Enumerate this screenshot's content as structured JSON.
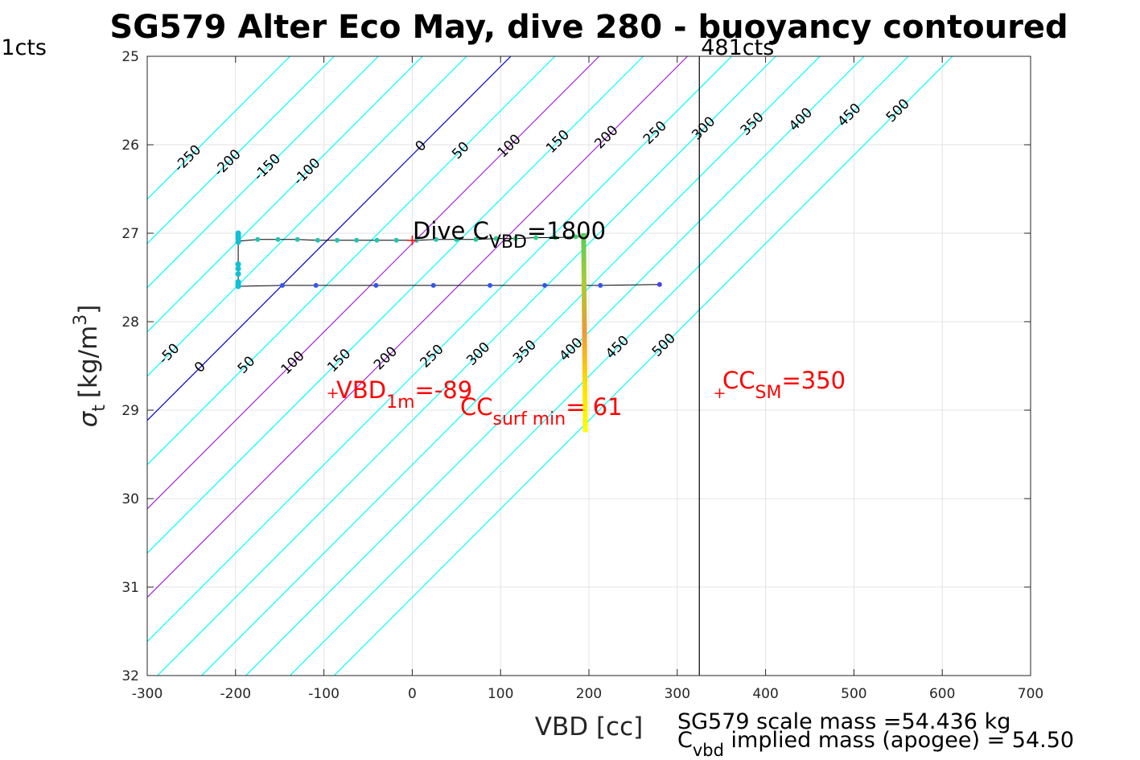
{
  "chart_data": {
    "type": "line",
    "title": "SG579 Alter Eco May, dive 280 - buoyancy contoured",
    "xlabel": "VBD [cc]",
    "ylabel_main": "σ",
    "ylabel_sub": "t",
    "ylabel_unit": "[kg/m",
    "ylabel_sup": "3",
    "ylabel_close": "]",
    "xlim": [
      -300,
      700
    ],
    "ylim": [
      25,
      32
    ],
    "y_reversed": true,
    "grid": true,
    "x_ticks": [
      -300,
      -200,
      -100,
      0,
      100,
      200,
      300,
      400,
      500,
      600,
      700
    ],
    "x_tick_labels": [
      "-300",
      "-200",
      "-100",
      "0",
      "100",
      "200",
      "300",
      "400",
      "500",
      "600",
      "700"
    ],
    "y_ticks": [
      25,
      26,
      27,
      28,
      29,
      30,
      31,
      32
    ],
    "y_tick_labels": [
      "25",
      "26",
      "27",
      "28",
      "29",
      "30",
      "31",
      "32"
    ],
    "contours": {
      "slope_cc_per_sigma": -100,
      "ref_sigma": 27,
      "ref_vbd_at_zero": -88.4,
      "levels": [
        -250,
        -200,
        -150,
        -100,
        -50,
        0,
        50,
        100,
        150,
        200,
        250,
        300,
        350,
        400,
        450,
        500
      ],
      "level_labels": [
        "-250",
        "-200",
        "-150",
        "-100",
        "-50",
        "0",
        "50",
        "100",
        "150",
        "200",
        "250",
        "300",
        "350",
        "400",
        "450",
        "500"
      ],
      "colors": {
        "default": "#00ffff",
        "zero": "#0000cc",
        "highlight": "#aa22dd"
      },
      "highlight_levels": [
        100,
        200
      ],
      "top_label_levels": [
        -250,
        -200,
        -150,
        -100,
        0,
        50,
        100,
        150,
        200,
        250,
        300,
        350,
        400,
        450,
        500
      ],
      "bottom_label_levels": [
        -50,
        0,
        50,
        100,
        150,
        200,
        250,
        300,
        350,
        400,
        450,
        500
      ]
    },
    "vertical_lines": [
      {
        "x": 325,
        "label": "481cts",
        "color": "#000000"
      },
      {
        "x": -300,
        "label": "1cts",
        "color": "#000000"
      }
    ],
    "series": [
      {
        "name": "",
        "color": "#000000",
        "points": [
          {
            "x": -197,
            "y": 27.09,
            "c": "#20c0c0"
          },
          {
            "x": -175,
            "y": 27.07,
            "c": "#22c4b0"
          },
          {
            "x": -152,
            "y": 27.07,
            "c": "#22c4b0"
          },
          {
            "x": -130,
            "y": 27.07,
            "c": "#22c4b0"
          },
          {
            "x": -107,
            "y": 27.08,
            "c": "#22c4b0"
          },
          {
            "x": -85,
            "y": 27.08,
            "c": "#22c4b0"
          },
          {
            "x": -63,
            "y": 27.08,
            "c": "#22c4b0"
          },
          {
            "x": -40,
            "y": 27.08,
            "c": "#22c4b0"
          },
          {
            "x": -18,
            "y": 27.08,
            "c": "#22c4b0"
          },
          {
            "x": 5,
            "y": 27.08,
            "c": "#22c4b0"
          },
          {
            "x": 27,
            "y": 27.07,
            "c": "#22c4b0"
          },
          {
            "x": 50,
            "y": 27.07,
            "c": "#24c8a0"
          },
          {
            "x": 72,
            "y": 27.07,
            "c": "#26cc98"
          },
          {
            "x": 95,
            "y": 27.06,
            "c": "#28cc90"
          },
          {
            "x": 117,
            "y": 27.06,
            "c": "#2ace88"
          },
          {
            "x": 140,
            "y": 27.05,
            "c": "#30d080"
          },
          {
            "x": 162,
            "y": 27.05,
            "c": "#38d078"
          },
          {
            "x": 185,
            "y": 27.04,
            "c": "#40d070"
          },
          {
            "x": 194,
            "y": 27.03,
            "c": "#50d060"
          }
        ]
      },
      {
        "name": "",
        "color": "#000000",
        "points": [
          {
            "x": -197,
            "y": 27.6,
            "c": "#3366ee"
          },
          {
            "x": -147,
            "y": 27.59,
            "c": "#3355ee"
          },
          {
            "x": -109,
            "y": 27.59,
            "c": "#3355ee"
          },
          {
            "x": -41,
            "y": 27.59,
            "c": "#3355ee"
          },
          {
            "x": 24,
            "y": 27.59,
            "c": "#3355ee"
          },
          {
            "x": 88,
            "y": 27.59,
            "c": "#3355ee"
          },
          {
            "x": 150,
            "y": 27.59,
            "c": "#3355ee"
          },
          {
            "x": 213,
            "y": 27.59,
            "c": "#3355ee"
          },
          {
            "x": 280,
            "y": 27.58,
            "c": "#4444ee"
          }
        ]
      }
    ],
    "vertical_cluster": {
      "x": -197,
      "y_values": [
        27.0,
        27.03,
        27.06,
        27.1,
        27.35,
        27.4,
        27.46,
        27.55,
        27.58,
        27.6
      ],
      "color": "#10c0d8"
    },
    "thick_segment": {
      "x_start": 194,
      "x_end": 196,
      "y_start": 27.0,
      "y_end": 29.25,
      "colors": [
        "#55cc55",
        "#aacc33",
        "#ee9933",
        "#ffdd00",
        "#ffff00"
      ]
    },
    "markers": [
      {
        "x": 0,
        "y": 27.08,
        "color": "#ff0000"
      },
      {
        "x": -90,
        "y": 28.81,
        "color": "#ff0000"
      },
      {
        "x": 348,
        "y": 28.81,
        "color": "#ff0000"
      }
    ],
    "annotations": {
      "dive_main": "Dive C",
      "dive_sub": "VBD",
      "dive_value": "=1800",
      "vbd_main": "VBD",
      "vbd_sub": "1m",
      "vbd_value": "=-89",
      "cc_main": "CC",
      "cc_sub": "surf min",
      "cc_value": "= 61",
      "ccsm_main": "CC",
      "ccsm_sub": "SM",
      "ccsm_value": "=350"
    },
    "footer": {
      "line1": "SG579 scale mass =54.436 kg",
      "line2_main": "C",
      "line2_sub": "vbd",
      "line2_rest": " implied mass (apogee) = 54.50"
    }
  }
}
